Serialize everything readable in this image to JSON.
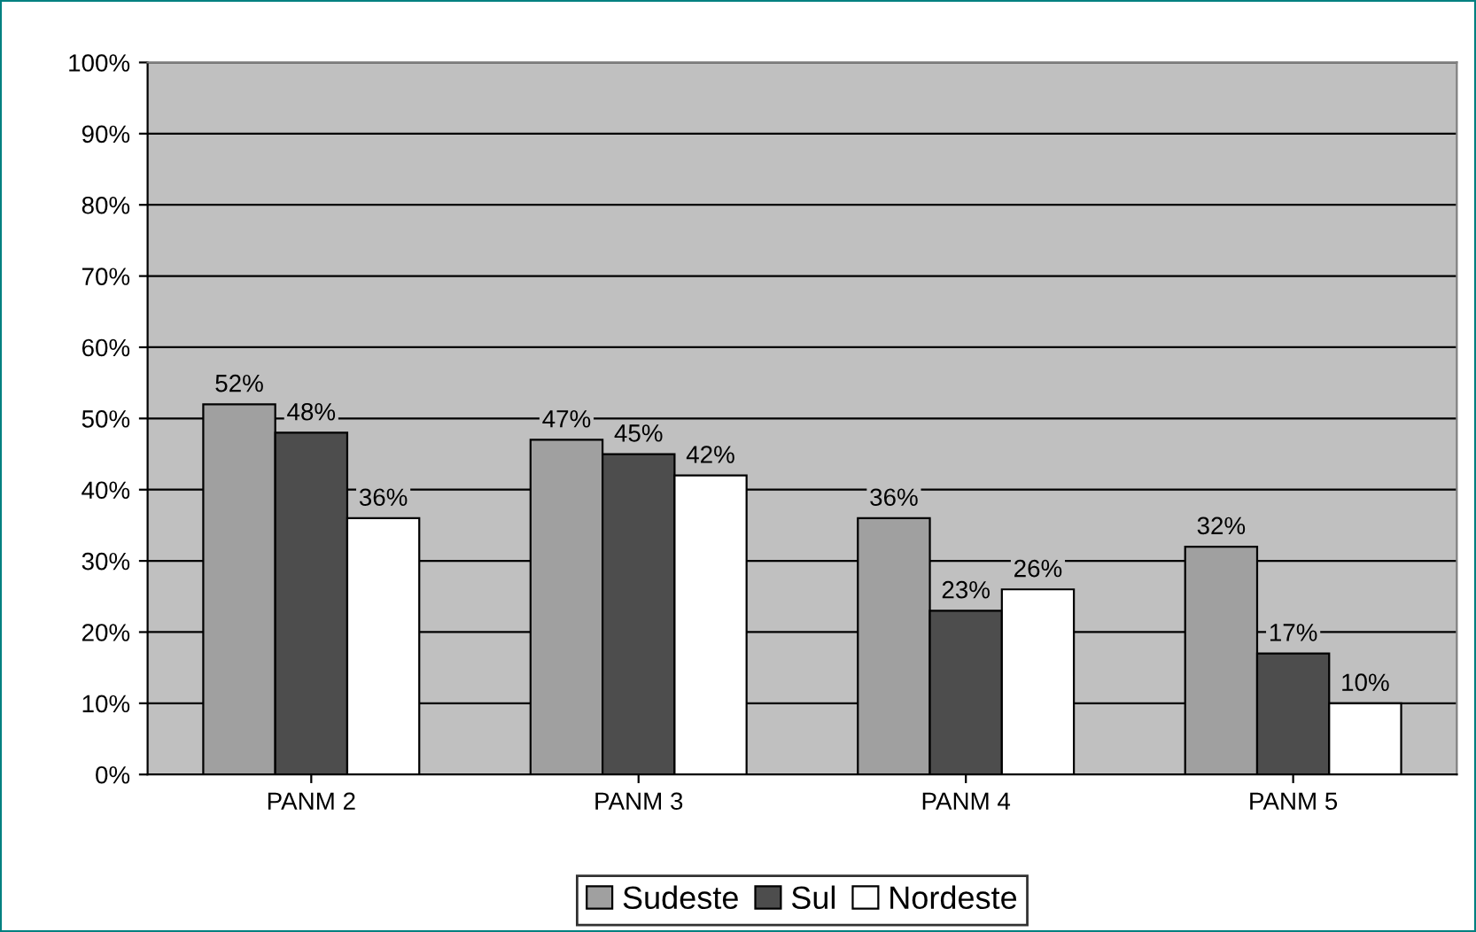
{
  "chart_data": {
    "type": "bar",
    "categories": [
      "PANM 2",
      "PANM 3",
      "PANM 4",
      "PANM 5"
    ],
    "series": [
      {
        "name": "Sudeste",
        "color": "#a0a0a0",
        "values": [
          52,
          47,
          36,
          32
        ]
      },
      {
        "name": "Sul",
        "color": "#4d4d4d",
        "values": [
          48,
          45,
          23,
          17
        ]
      },
      {
        "name": "Nordeste",
        "color": "#ffffff",
        "values": [
          36,
          42,
          26,
          10
        ]
      }
    ],
    "ylim": [
      0,
      100
    ],
    "yticks": [
      {
        "value": 0,
        "label": "0%"
      },
      {
        "value": 10,
        "label": "10%"
      },
      {
        "value": 20,
        "label": "20%"
      },
      {
        "value": 30,
        "label": "30%"
      },
      {
        "value": 40,
        "label": "40%"
      },
      {
        "value": 50,
        "label": "50%"
      },
      {
        "value": 60,
        "label": "60%"
      },
      {
        "value": 70,
        "label": "70%"
      },
      {
        "value": 80,
        "label": "80%"
      },
      {
        "value": 90,
        "label": "90%"
      },
      {
        "value": 100,
        "label": "100%"
      }
    ],
    "value_labels": [
      [
        "52%",
        "47%",
        "36%",
        "32%"
      ],
      [
        "48%",
        "45%",
        "23%",
        "17%"
      ],
      [
        "36%",
        "42%",
        "26%",
        "10%"
      ]
    ],
    "grid": "y",
    "legend": "bottom"
  }
}
